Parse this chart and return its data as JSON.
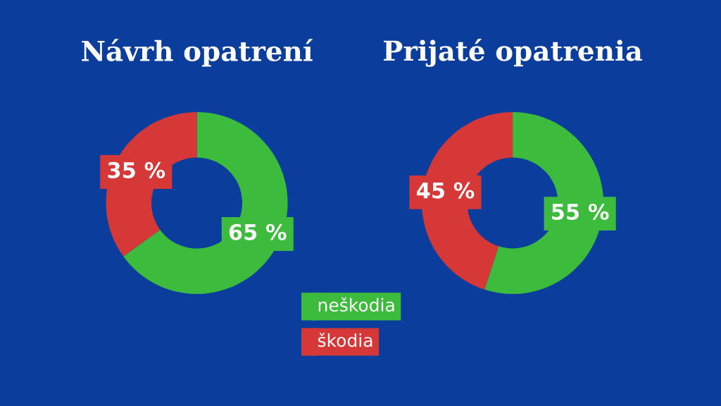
{
  "chart_data": [
    {
      "type": "donut",
      "title": "Návrh opatrení",
      "categories": [
        "neškodia",
        "škodia"
      ],
      "values": [
        65,
        35
      ],
      "colors": [
        "#3dbb3d",
        "#d63838"
      ],
      "value_labels": [
        "65 %",
        "35 %"
      ],
      "legend": "bottom right"
    },
    {
      "type": "donut",
      "title": "Prijaté opatrenia",
      "categories": [
        null,
        null
      ],
      "values": [
        55,
        45
      ],
      "colors": [
        "#3dbb3d",
        "#d63838"
      ],
      "value_labels": [
        "55 %",
        "45 %"
      ]
    }
  ]
}
